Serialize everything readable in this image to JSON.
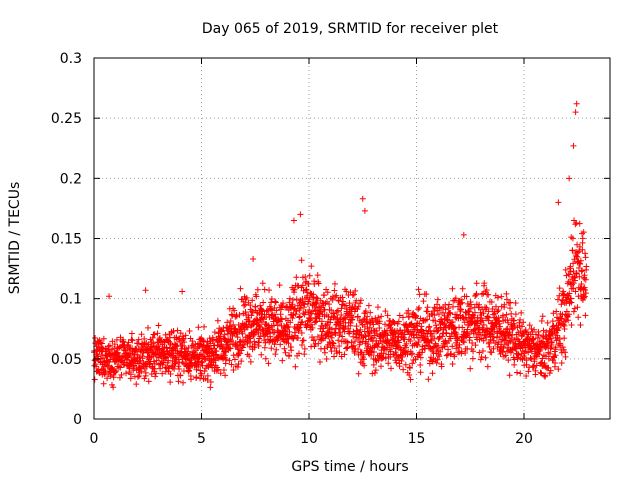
{
  "chart_data": {
    "type": "scatter",
    "title": "Day 065 of 2019, SRMTID for receiver plet",
    "xlabel": "GPS time / hours",
    "ylabel": "SRMTID / TECUs",
    "xlim": [
      0,
      24
    ],
    "ylim": [
      0,
      0.3
    ],
    "x_ticks": [
      "0",
      "5",
      "10",
      "15",
      "20"
    ],
    "y_ticks": [
      "0",
      "0.05",
      "0.1",
      "0.15",
      "0.2",
      "0.25",
      "0.3"
    ],
    "grid": true,
    "marker": "+",
    "color": "#ff0000",
    "series": [
      {
        "name": "SRMTID",
        "profile": {
          "description_hours_vs_level": "approximate median level and spread per time segment",
          "hours": [
            0,
            1,
            2,
            3,
            4,
            5,
            6,
            7,
            8,
            9,
            9.5,
            10,
            11,
            12,
            12.5,
            13,
            14,
            15,
            16,
            17,
            18,
            19,
            20,
            21,
            21.5,
            22,
            22.3,
            22.6,
            22.9
          ],
          "median": [
            0.05,
            0.05,
            0.05,
            0.055,
            0.055,
            0.05,
            0.06,
            0.08,
            0.08,
            0.07,
            0.09,
            0.09,
            0.08,
            0.08,
            0.07,
            0.065,
            0.065,
            0.07,
            0.07,
            0.08,
            0.08,
            0.075,
            0.06,
            0.055,
            0.07,
            0.09,
            0.13,
            0.13,
            0.11
          ],
          "spread": [
            0.015,
            0.015,
            0.015,
            0.017,
            0.017,
            0.017,
            0.02,
            0.025,
            0.025,
            0.025,
            0.03,
            0.03,
            0.025,
            0.025,
            0.025,
            0.022,
            0.022,
            0.025,
            0.025,
            0.028,
            0.028,
            0.025,
            0.02,
            0.02,
            0.025,
            0.03,
            0.04,
            0.04,
            0.02
          ]
        },
        "peaks": [
          {
            "x": 0.7,
            "y": 0.102
          },
          {
            "x": 2.4,
            "y": 0.107
          },
          {
            "x": 4.1,
            "y": 0.106
          },
          {
            "x": 7.4,
            "y": 0.133
          },
          {
            "x": 9.3,
            "y": 0.165
          },
          {
            "x": 9.6,
            "y": 0.17
          },
          {
            "x": 12.5,
            "y": 0.183
          },
          {
            "x": 12.6,
            "y": 0.173
          },
          {
            "x": 17.2,
            "y": 0.153
          },
          {
            "x": 21.6,
            "y": 0.18
          },
          {
            "x": 22.1,
            "y": 0.2
          },
          {
            "x": 22.3,
            "y": 0.227
          },
          {
            "x": 22.4,
            "y": 0.255
          },
          {
            "x": 22.45,
            "y": 0.262
          }
        ],
        "n_points": 2600
      }
    ]
  }
}
